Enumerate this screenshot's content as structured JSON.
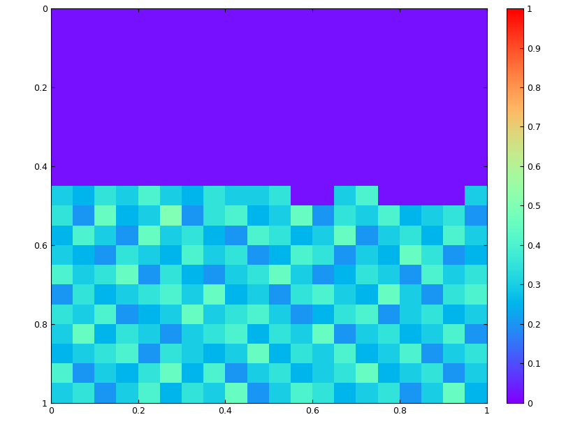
{
  "chart_data": {
    "type": "heatmap",
    "xlim": [
      0,
      1
    ],
    "xticks": [
      0,
      0.2,
      0.4,
      0.6,
      0.8,
      1
    ],
    "ylim": [
      1,
      0
    ],
    "yticks": [
      0,
      0.2,
      0.4,
      0.6,
      0.8,
      1
    ],
    "colorbar": {
      "range": [
        0,
        1
      ],
      "ticks": [
        0,
        0.1,
        0.2,
        0.3,
        0.4,
        0.5,
        0.6,
        0.7,
        0.8,
        0.9,
        1
      ]
    },
    "cells": [
      [
        0.02,
        0.02,
        0.02,
        0.02,
        0.02,
        0.02,
        0.02,
        0.02,
        0.02,
        0.02,
        0.02,
        0.02,
        0.02,
        0.02,
        0.02,
        0.02,
        0.02,
        0.02,
        0.02,
        0.02
      ],
      [
        0.02,
        0.02,
        0.02,
        0.02,
        0.02,
        0.02,
        0.02,
        0.02,
        0.02,
        0.02,
        0.02,
        0.02,
        0.02,
        0.02,
        0.02,
        0.02,
        0.02,
        0.02,
        0.02,
        0.02
      ],
      [
        0.02,
        0.02,
        0.02,
        0.02,
        0.02,
        0.02,
        0.02,
        0.02,
        0.02,
        0.02,
        0.02,
        0.02,
        0.02,
        0.02,
        0.02,
        0.02,
        0.02,
        0.02,
        0.02,
        0.02
      ],
      [
        0.02,
        0.02,
        0.02,
        0.02,
        0.02,
        0.02,
        0.02,
        0.02,
        0.02,
        0.02,
        0.02,
        0.02,
        0.02,
        0.02,
        0.02,
        0.02,
        0.02,
        0.02,
        0.02,
        0.02
      ],
      [
        0.02,
        0.02,
        0.02,
        0.02,
        0.02,
        0.02,
        0.02,
        0.02,
        0.02,
        0.02,
        0.02,
        0.02,
        0.02,
        0.02,
        0.02,
        0.02,
        0.02,
        0.02,
        0.02,
        0.02
      ],
      [
        0.02,
        0.02,
        0.02,
        0.02,
        0.02,
        0.02,
        0.02,
        0.02,
        0.02,
        0.02,
        0.02,
        0.02,
        0.02,
        0.02,
        0.02,
        0.02,
        0.02,
        0.02,
        0.02,
        0.02
      ],
      [
        0.02,
        0.02,
        0.02,
        0.02,
        0.02,
        0.02,
        0.02,
        0.02,
        0.02,
        0.02,
        0.02,
        0.02,
        0.02,
        0.02,
        0.02,
        0.02,
        0.02,
        0.02,
        0.02,
        0.02
      ],
      [
        0.02,
        0.02,
        0.02,
        0.02,
        0.02,
        0.02,
        0.02,
        0.02,
        0.02,
        0.02,
        0.02,
        0.02,
        0.02,
        0.02,
        0.02,
        0.02,
        0.02,
        0.02,
        0.02,
        0.02
      ],
      [
        0.02,
        0.02,
        0.02,
        0.02,
        0.02,
        0.02,
        0.02,
        0.02,
        0.02,
        0.02,
        0.02,
        0.02,
        0.02,
        0.02,
        0.02,
        0.02,
        0.02,
        0.02,
        0.02,
        0.02
      ],
      [
        0.3,
        0.25,
        0.35,
        0.3,
        0.4,
        0.3,
        0.25,
        0.35,
        0.3,
        0.3,
        0.35,
        0.02,
        0.02,
        0.3,
        0.4,
        0.02,
        0.02,
        0.02,
        0.02,
        0.3
      ],
      [
        0.35,
        0.2,
        0.45,
        0.25,
        0.3,
        0.5,
        0.2,
        0.35,
        0.4,
        0.25,
        0.3,
        0.45,
        0.2,
        0.35,
        0.3,
        0.4,
        0.25,
        0.3,
        0.35,
        0.2
      ],
      [
        0.25,
        0.4,
        0.3,
        0.2,
        0.45,
        0.3,
        0.35,
        0.25,
        0.2,
        0.4,
        0.35,
        0.25,
        0.3,
        0.45,
        0.2,
        0.3,
        0.35,
        0.25,
        0.4,
        0.3
      ],
      [
        0.3,
        0.25,
        0.2,
        0.35,
        0.3,
        0.25,
        0.4,
        0.3,
        0.35,
        0.2,
        0.25,
        0.4,
        0.35,
        0.2,
        0.3,
        0.25,
        0.45,
        0.35,
        0.2,
        0.25
      ],
      [
        0.4,
        0.3,
        0.35,
        0.45,
        0.2,
        0.35,
        0.25,
        0.2,
        0.3,
        0.35,
        0.45,
        0.3,
        0.2,
        0.25,
        0.35,
        0.3,
        0.2,
        0.4,
        0.3,
        0.35
      ],
      [
        0.2,
        0.35,
        0.25,
        0.3,
        0.35,
        0.4,
        0.3,
        0.45,
        0.25,
        0.3,
        0.2,
        0.35,
        0.4,
        0.3,
        0.25,
        0.45,
        0.3,
        0.2,
        0.35,
        0.4
      ],
      [
        0.35,
        0.3,
        0.4,
        0.2,
        0.25,
        0.3,
        0.45,
        0.3,
        0.35,
        0.4,
        0.3,
        0.2,
        0.25,
        0.35,
        0.4,
        0.2,
        0.3,
        0.35,
        0.25,
        0.3
      ],
      [
        0.3,
        0.45,
        0.25,
        0.35,
        0.3,
        0.2,
        0.3,
        0.35,
        0.4,
        0.25,
        0.35,
        0.3,
        0.45,
        0.2,
        0.3,
        0.35,
        0.25,
        0.3,
        0.4,
        0.2
      ],
      [
        0.25,
        0.3,
        0.35,
        0.4,
        0.2,
        0.35,
        0.3,
        0.25,
        0.3,
        0.45,
        0.25,
        0.35,
        0.3,
        0.4,
        0.25,
        0.3,
        0.4,
        0.2,
        0.3,
        0.35
      ],
      [
        0.4,
        0.2,
        0.3,
        0.25,
        0.35,
        0.45,
        0.25,
        0.4,
        0.2,
        0.3,
        0.35,
        0.25,
        0.3,
        0.35,
        0.45,
        0.25,
        0.3,
        0.35,
        0.2,
        0.3
      ],
      [
        0.3,
        0.35,
        0.2,
        0.3,
        0.4,
        0.25,
        0.35,
        0.3,
        0.45,
        0.2,
        0.3,
        0.4,
        0.35,
        0.25,
        0.3,
        0.35,
        0.2,
        0.3,
        0.45,
        0.25
      ]
    ]
  }
}
